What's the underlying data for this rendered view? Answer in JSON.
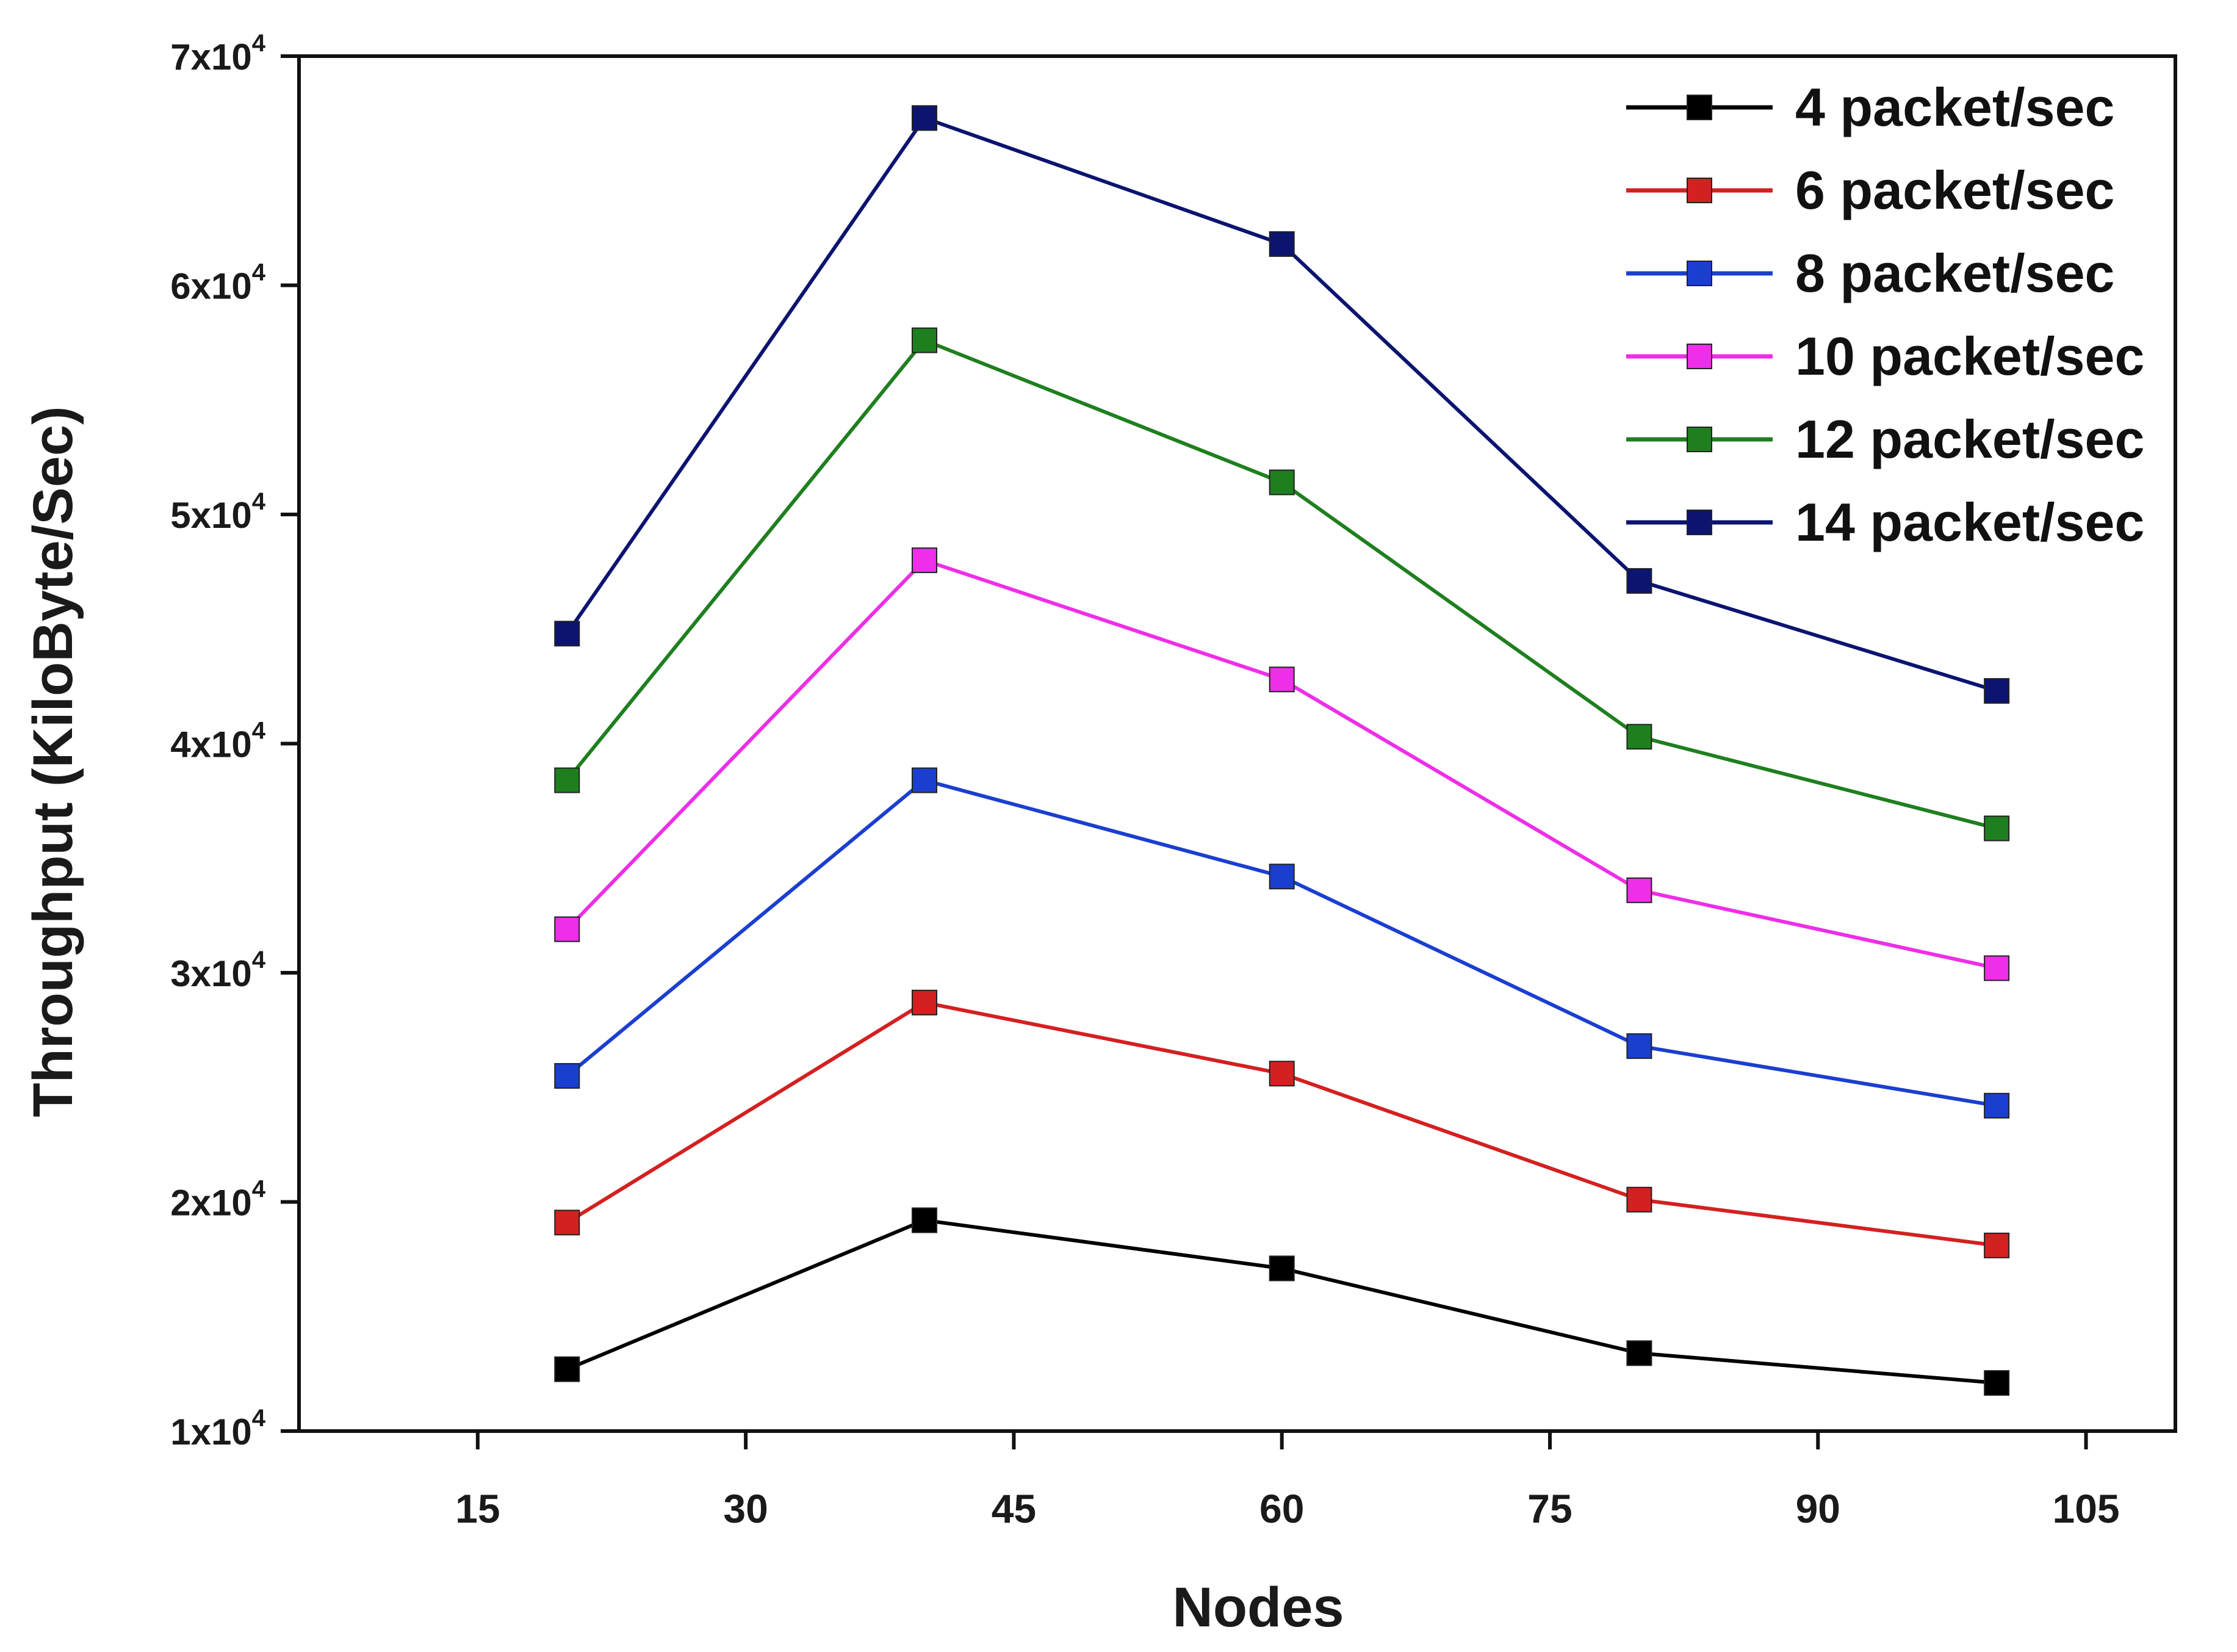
{
  "chart_data": {
    "type": "line",
    "title": "",
    "xlabel": "Nodes",
    "ylabel": "Throughput (KiloByte/Sec)",
    "xlim": [
      5,
      110
    ],
    "ylim": [
      10000,
      70000
    ],
    "x_ticks": [
      15,
      30,
      45,
      60,
      75,
      90,
      105
    ],
    "y_ticks": [
      {
        "value": 10000,
        "mantissa": "1x10",
        "exp": "4"
      },
      {
        "value": 20000,
        "mantissa": "2x10",
        "exp": "4"
      },
      {
        "value": 30000,
        "mantissa": "3x10",
        "exp": "4"
      },
      {
        "value": 40000,
        "mantissa": "4x10",
        "exp": "4"
      },
      {
        "value": 50000,
        "mantissa": "5x10",
        "exp": "4"
      },
      {
        "value": 60000,
        "mantissa": "6x10",
        "exp": "4"
      },
      {
        "value": 70000,
        "mantissa": "7x10",
        "exp": "4"
      }
    ],
    "x": [
      20,
      40,
      60,
      80,
      100
    ],
    "series": [
      {
        "name": "4 packet/sec",
        "color": "#000000",
        "values": [
          12700,
          19200,
          17100,
          13400,
          12100
        ]
      },
      {
        "name": "6 packet/sec",
        "color": "#d42020",
        "values": [
          19100,
          28700,
          25600,
          20100,
          18100
        ]
      },
      {
        "name": "8 packet/sec",
        "color": "#1a3fd0",
        "values": [
          25500,
          38400,
          34200,
          26800,
          24200
        ]
      },
      {
        "name": "10 packet/sec",
        "color": "#ee2ee8",
        "values": [
          31900,
          48000,
          42800,
          33600,
          30200
        ]
      },
      {
        "name": "12 packet/sec",
        "color": "#1f7f1f",
        "values": [
          38400,
          57600,
          51400,
          40300,
          36300
        ]
      },
      {
        "name": "14 packet/sec",
        "color": "#0c1470",
        "values": [
          44800,
          67300,
          61800,
          47100,
          42300
        ]
      }
    ],
    "grid": false,
    "legend_position": "top-right"
  }
}
